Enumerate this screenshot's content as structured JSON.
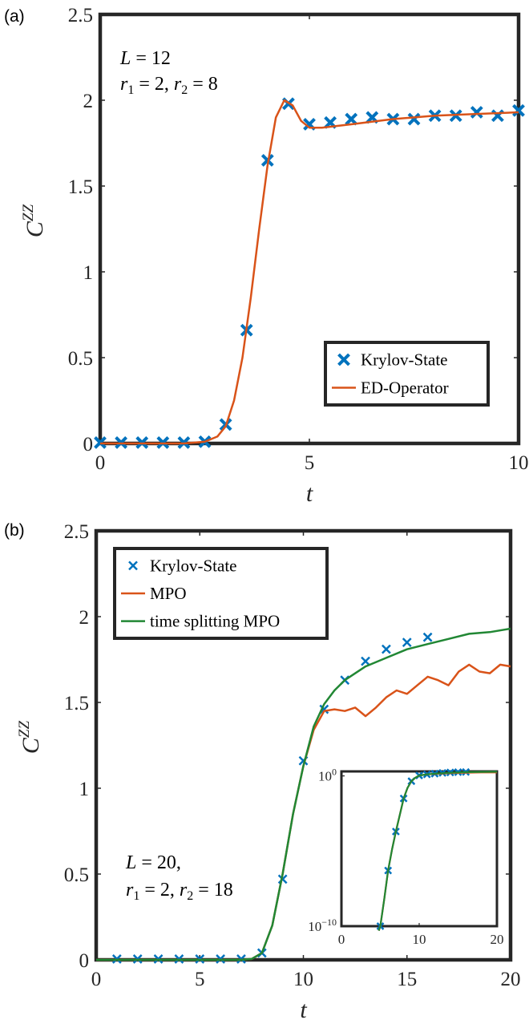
{
  "chart_data": [
    {
      "type": "line",
      "panel_label": "(a)",
      "xlabel": "t",
      "ylabel": "C",
      "ylabel_sup": "ZZ",
      "xlim": [
        0,
        10
      ],
      "ylim": [
        0,
        2.5
      ],
      "xticks": [
        0,
        5,
        10
      ],
      "yticks": [
        0,
        0.5,
        1,
        1.5,
        2,
        2.5
      ],
      "xtick_labels": [
        "0",
        "5",
        "10"
      ],
      "ytick_labels": [
        "0",
        "0.5",
        "1",
        "1.5",
        "2",
        "2.5"
      ],
      "annotations": [
        "L = 12",
        "r1 = 2, r2 = 8"
      ],
      "annotation_lines": [
        [
          {
            "t": "L",
            "s": "it"
          },
          {
            "t": " = 12",
            "s": "n"
          }
        ],
        [
          {
            "t": "r",
            "s": "it"
          },
          {
            "t": "1",
            "s": "sub"
          },
          {
            "t": " = 2, ",
            "s": "n"
          },
          {
            "t": "r",
            "s": "it"
          },
          {
            "t": "2",
            "s": "sub"
          },
          {
            "t": " = 8",
            "s": "n"
          }
        ]
      ],
      "legend_position": "bottom-right",
      "series": [
        {
          "name": "Krylov-State",
          "style": "marker",
          "color": "#0072BD",
          "x": [
            0,
            0.5,
            1,
            1.5,
            2,
            2.5,
            3,
            3.5,
            4,
            4.5,
            5,
            5.5,
            6,
            6.5,
            7,
            7.5,
            8,
            8.5,
            9,
            9.5,
            10
          ],
          "y": [
            0.005,
            0.005,
            0.005,
            0.005,
            0.005,
            0.01,
            0.11,
            0.66,
            1.65,
            1.98,
            1.86,
            1.87,
            1.89,
            1.9,
            1.89,
            1.89,
            1.91,
            1.91,
            1.93,
            1.91,
            1.94
          ]
        },
        {
          "name": "ED-Operator",
          "style": "line",
          "color": "#D95319",
          "x": [
            0,
            2,
            2.5,
            2.8,
            3,
            3.2,
            3.4,
            3.6,
            3.8,
            4,
            4.2,
            4.4,
            4.6,
            4.8,
            5,
            5.3,
            6,
            7,
            8,
            9,
            10
          ],
          "y": [
            0,
            0,
            0.01,
            0.04,
            0.1,
            0.25,
            0.5,
            0.85,
            1.25,
            1.62,
            1.9,
            2.0,
            1.97,
            1.88,
            1.84,
            1.84,
            1.86,
            1.89,
            1.91,
            1.92,
            1.93
          ]
        }
      ]
    },
    {
      "type": "line",
      "panel_label": "(b)",
      "xlabel": "t",
      "ylabel": "C",
      "ylabel_sup": "ZZ",
      "xlim": [
        0,
        20
      ],
      "ylim": [
        0,
        2.5
      ],
      "xticks": [
        0,
        5,
        10,
        15,
        20
      ],
      "yticks": [
        0,
        0.5,
        1,
        1.5,
        2,
        2.5
      ],
      "xtick_labels": [
        "0",
        "5",
        "10",
        "15",
        "20"
      ],
      "ytick_labels": [
        "0",
        "0.5",
        "1",
        "1.5",
        "2",
        "2.5"
      ],
      "annotations": [
        "L = 20,",
        "r1 = 2, r2 = 18"
      ],
      "annotation_lines": [
        [
          {
            "t": "L",
            "s": "it"
          },
          {
            "t": " = 20,",
            "s": "n"
          }
        ],
        [
          {
            "t": "r",
            "s": "it"
          },
          {
            "t": "1",
            "s": "sub"
          },
          {
            "t": " = 2, ",
            "s": "n"
          },
          {
            "t": "r",
            "s": "it"
          },
          {
            "t": "2",
            "s": "sub"
          },
          {
            "t": " = 18",
            "s": "n"
          }
        ]
      ],
      "legend_position": "top-left",
      "series": [
        {
          "name": "Krylov-State",
          "style": "marker",
          "color": "#0072BD",
          "x": [
            1,
            2,
            3,
            4,
            5,
            6,
            7,
            8,
            9,
            10,
            11,
            12,
            13,
            14,
            15,
            16
          ],
          "y": [
            0.005,
            0.005,
            0.005,
            0.005,
            0.005,
            0.005,
            0.005,
            0.04,
            0.47,
            1.16,
            1.46,
            1.63,
            1.74,
            1.81,
            1.85,
            1.88
          ]
        },
        {
          "name": "MPO",
          "style": "line",
          "color": "#D95319",
          "x": [
            0,
            7,
            7.5,
            8,
            8.5,
            9,
            9.5,
            10,
            10.5,
            11,
            11.5,
            12,
            12.5,
            13,
            13.5,
            14,
            14.5,
            15,
            15.5,
            16,
            16.5,
            17,
            17.5,
            18,
            18.5,
            19,
            19.5,
            20
          ],
          "y": [
            0,
            0,
            0.005,
            0.04,
            0.2,
            0.5,
            0.85,
            1.13,
            1.34,
            1.45,
            1.46,
            1.45,
            1.47,
            1.42,
            1.47,
            1.53,
            1.57,
            1.55,
            1.6,
            1.65,
            1.63,
            1.6,
            1.68,
            1.72,
            1.68,
            1.67,
            1.72,
            1.71
          ]
        },
        {
          "name": "time splitting MPO",
          "style": "line",
          "color": "#218734",
          "x": [
            0,
            7,
            7.5,
            8,
            8.5,
            9,
            9.5,
            10,
            10.5,
            11,
            11.5,
            12,
            13,
            14,
            15,
            16,
            17,
            18,
            19,
            20
          ],
          "y": [
            0,
            0,
            0.005,
            0.04,
            0.2,
            0.5,
            0.85,
            1.13,
            1.36,
            1.49,
            1.57,
            1.63,
            1.71,
            1.76,
            1.81,
            1.84,
            1.87,
            1.9,
            1.91,
            1.93
          ]
        }
      ],
      "inset": {
        "type": "line",
        "yscale": "log",
        "xlim": [
          0,
          20
        ],
        "ylim_exponent": [
          -10,
          0.3
        ],
        "xticks": [
          0,
          10,
          20
        ],
        "xtick_labels": [
          "0",
          "10",
          "20"
        ],
        "yticks_exponent": [
          -10,
          0
        ],
        "ytick_base": "10",
        "ytick_exponents": [
          "−10",
          "0"
        ],
        "series": [
          {
            "name": "Krylov-State",
            "style": "marker",
            "color": "#0072BD",
            "x": [
              5,
              6,
              7,
              8,
              9,
              10,
              11,
              12,
              13,
              14,
              15,
              16
            ],
            "y_exponent": [
              -10,
              -6.3,
              -3.7,
              -1.5,
              -0.35,
              0.03,
              0.1,
              0.15,
              0.2,
              0.23,
              0.25,
              0.26
            ]
          },
          {
            "name": "MPO",
            "style": "line",
            "color": "#D95319",
            "x": [
              4.8,
              5,
              5.5,
              6,
              6.5,
              7,
              7.5,
              8,
              8.5,
              9,
              9.5,
              10,
              11,
              12,
              14,
              16,
              18,
              20
            ],
            "y_exponent": [
              -10.3,
              -10,
              -8.2,
              -6.3,
              -4.9,
              -3.7,
              -2.6,
              -1.5,
              -0.8,
              -0.35,
              -0.12,
              0.03,
              0.1,
              0.13,
              0.18,
              0.21,
              0.23,
              0.23
            ]
          },
          {
            "name": "time splitting MPO",
            "style": "line",
            "color": "#218734",
            "x": [
              4.8,
              5,
              5.5,
              6,
              6.5,
              7,
              7.5,
              8,
              8.5,
              9,
              9.5,
              10,
              11,
              12,
              14,
              16,
              18,
              20
            ],
            "y_exponent": [
              -10.3,
              -10,
              -8.2,
              -6.3,
              -4.9,
              -3.7,
              -2.6,
              -1.5,
              -0.8,
              -0.35,
              -0.12,
              0.03,
              0.1,
              0.15,
              0.21,
              0.25,
              0.27,
              0.28
            ]
          }
        ]
      }
    }
  ]
}
